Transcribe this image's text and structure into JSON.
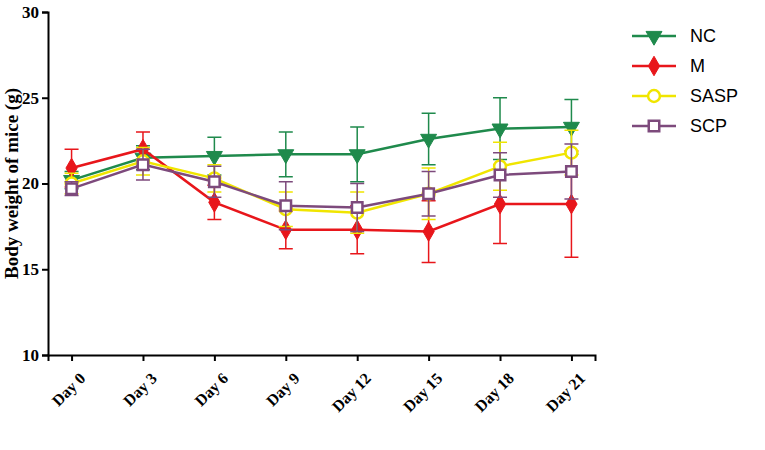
{
  "chart_data": {
    "type": "line",
    "y_label": "Body weight of mice (g)",
    "categories": [
      "Day 0",
      "Day 3",
      "Day 6",
      "Day 9",
      "Day 12",
      "Day 15",
      "Day 18",
      "Day 21"
    ],
    "ylim": [
      10,
      30
    ],
    "yticks": [
      10,
      15,
      20,
      25,
      30
    ],
    "grid": false,
    "legend": "right",
    "series": [
      {
        "name": "NC",
        "color": "#1f8a4c",
        "marker": "triangle-down",
        "line_style": "solid",
        "values": [
          20.2,
          21.5,
          21.6,
          21.7,
          21.7,
          22.6,
          23.2,
          23.3
        ],
        "errors": [
          0.5,
          0.7,
          1.1,
          1.3,
          1.6,
          1.5,
          1.8,
          1.6
        ]
      },
      {
        "name": "M",
        "color": "#e8161b",
        "marker": "diamond",
        "line_style": "solid",
        "values": [
          20.9,
          22.0,
          18.9,
          17.3,
          17.3,
          17.2,
          18.8,
          18.8
        ],
        "errors": [
          1.1,
          1.0,
          1.0,
          1.1,
          1.4,
          1.8,
          2.3,
          3.1
        ]
      },
      {
        "name": "SASP",
        "color": "#f0e500",
        "marker": "circle-open",
        "line_style": "solid",
        "values": [
          20.0,
          21.3,
          20.3,
          18.5,
          18.3,
          19.4,
          21.0,
          21.8
        ],
        "errors": [
          0.6,
          0.8,
          0.8,
          1.0,
          1.2,
          1.5,
          1.4,
          1.3
        ]
      },
      {
        "name": "SCP",
        "color": "#7d4a7c",
        "marker": "square-open",
        "line_style": "solid",
        "values": [
          19.7,
          21.1,
          20.1,
          18.7,
          18.6,
          19.4,
          20.5,
          20.7
        ],
        "errors": [
          0.4,
          0.9,
          0.9,
          1.4,
          1.4,
          1.3,
          1.3,
          1.6
        ]
      }
    ]
  }
}
